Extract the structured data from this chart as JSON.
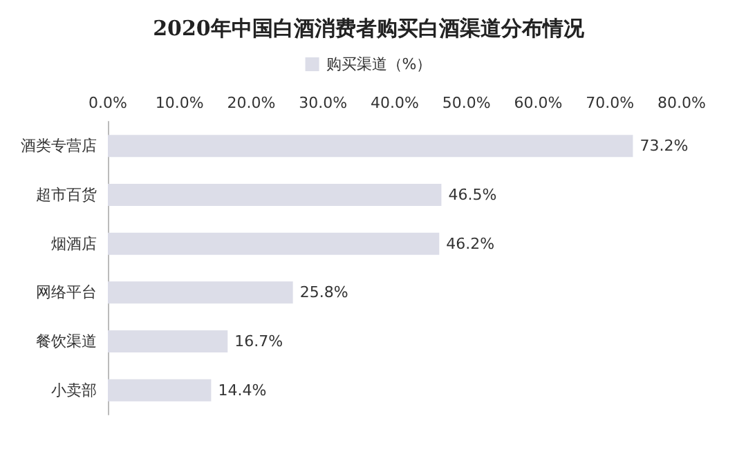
{
  "chart_data": {
    "type": "bar",
    "orientation": "horizontal",
    "title": "2020年中国白酒消费者购买白酒渠道分布情况",
    "categories": [
      "酒类专营店",
      "超市百货",
      "烟酒店",
      "网络平台",
      "餐饮渠道",
      "小卖部"
    ],
    "series": [
      {
        "name": "购买渠道（%）",
        "color": "#dcdde8",
        "values": [
          73.2,
          46.5,
          46.2,
          25.8,
          16.7,
          14.4
        ],
        "value_labels": [
          "73.2%",
          "46.5%",
          "46.2%",
          "25.8%",
          "16.7%",
          "14.4%"
        ]
      }
    ],
    "xlim": [
      0,
      80
    ],
    "xticks": [
      {
        "value": 0,
        "label": "0.0%"
      },
      {
        "value": 10,
        "label": "10.0%"
      },
      {
        "value": 20,
        "label": "20.0%"
      },
      {
        "value": 30,
        "label": "30.0%"
      },
      {
        "value": 40,
        "label": "40.0%"
      },
      {
        "value": 50,
        "label": "50.0%"
      },
      {
        "value": 60,
        "label": "60.0%"
      },
      {
        "value": 70,
        "label": "70.0%"
      },
      {
        "value": 80,
        "label": "80.0%"
      }
    ],
    "legend": "top",
    "grid": false
  }
}
